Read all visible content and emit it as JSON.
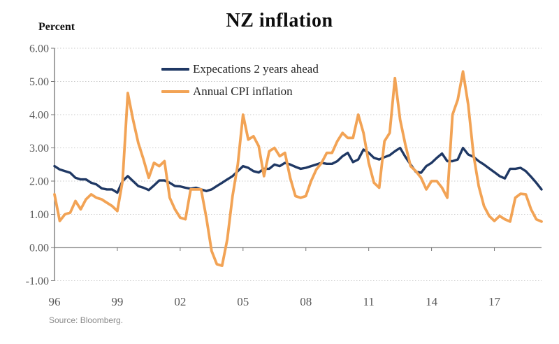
{
  "source": {
    "text": "Source: Bloomberg."
  },
  "chart_data": {
    "type": "line",
    "title": "NZ inflation",
    "ylabel": "Percent",
    "xlabel": "",
    "frequency": "quarterly",
    "x_start": "1996Q1",
    "x_end": "2019Q2",
    "xtick_labels": [
      "96",
      "99",
      "02",
      "05",
      "08",
      "11",
      "14",
      "17"
    ],
    "ytick_labels": [
      "6.00",
      "5.00",
      "4.00",
      "3.00",
      "2.00",
      "1.00",
      "0.00",
      "-1.00"
    ],
    "ylim": [
      -1,
      6
    ],
    "grid": "horizontal-dotted",
    "legend_position": "inside-top-left",
    "series": [
      {
        "name": "Expecations 2 years ahead",
        "color": "#1F3864",
        "values": [
          2.45,
          2.35,
          2.3,
          2.25,
          2.1,
          2.05,
          2.05,
          1.95,
          1.9,
          1.78,
          1.75,
          1.75,
          1.65,
          2.0,
          2.15,
          2.0,
          1.85,
          1.8,
          1.73,
          1.87,
          2.02,
          2.02,
          1.95,
          1.85,
          1.84,
          1.8,
          1.77,
          1.8,
          1.75,
          1.7,
          1.75,
          1.85,
          1.95,
          2.05,
          2.15,
          2.3,
          2.45,
          2.4,
          2.3,
          2.26,
          2.37,
          2.37,
          2.5,
          2.45,
          2.55,
          2.5,
          2.43,
          2.37,
          2.4,
          2.45,
          2.5,
          2.55,
          2.52,
          2.52,
          2.6,
          2.75,
          2.85,
          2.57,
          2.65,
          2.95,
          2.85,
          2.7,
          2.65,
          2.72,
          2.78,
          2.9,
          3.0,
          2.73,
          2.5,
          2.28,
          2.25,
          2.45,
          2.55,
          2.7,
          2.83,
          2.6,
          2.6,
          2.65,
          3.0,
          2.8,
          2.73,
          2.6,
          2.5,
          2.38,
          2.27,
          2.15,
          2.08,
          2.37,
          2.37,
          2.4,
          2.3,
          2.13,
          1.95,
          1.75
        ]
      },
      {
        "name": "Annual CPI inflation",
        "color": "#F2A355",
        "values": [
          1.6,
          0.8,
          1.0,
          1.05,
          1.4,
          1.15,
          1.45,
          1.6,
          1.5,
          1.45,
          1.35,
          1.25,
          1.1,
          2.0,
          4.65,
          3.85,
          3.15,
          2.65,
          2.1,
          2.55,
          2.45,
          2.6,
          1.5,
          1.15,
          0.9,
          0.85,
          1.75,
          1.75,
          1.75,
          0.9,
          -0.1,
          -0.5,
          -0.55,
          0.25,
          1.55,
          2.5,
          4.0,
          3.25,
          3.35,
          3.05,
          2.15,
          2.9,
          3.0,
          2.75,
          2.85,
          2.1,
          1.55,
          1.5,
          1.55,
          2.0,
          2.35,
          2.55,
          2.85,
          2.85,
          3.2,
          3.45,
          3.3,
          3.3,
          4.0,
          3.45,
          2.55,
          1.95,
          1.8,
          3.2,
          3.45,
          5.1,
          3.85,
          3.1,
          2.45,
          2.3,
          2.1,
          1.75,
          2.0,
          2.0,
          1.8,
          1.5,
          4.0,
          4.45,
          5.3,
          4.3,
          2.8,
          1.85,
          1.25,
          0.95,
          0.8,
          0.95,
          0.85,
          0.78,
          1.5,
          1.62,
          1.6,
          1.15,
          0.85,
          0.78
        ]
      }
    ]
  }
}
